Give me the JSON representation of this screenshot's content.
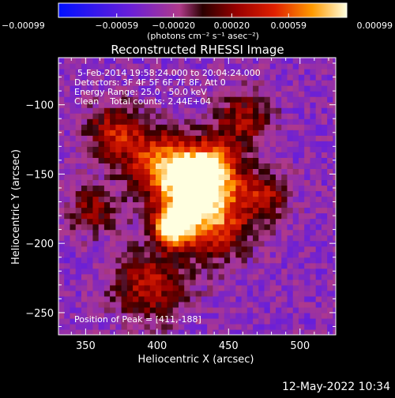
{
  "chart_data": {
    "type": "heatmap",
    "title": "Reconstructed RHESSI Image",
    "xlabel": "Heliocentric X (arcsec)",
    "ylabel": "Heliocentric Y (arcsec)",
    "xlim": [
      331,
      525
    ],
    "ylim": [
      -266,
      -66
    ],
    "x_ticks": [
      350,
      400,
      450,
      500
    ],
    "y_ticks": [
      -100,
      -150,
      -200,
      -250
    ],
    "colorbar": {
      "min": -0.00099,
      "max": 0.00099,
      "tick_values": [
        -0.00099,
        -0.00059,
        -0.0002,
        0.0002,
        0.00059,
        0.00099
      ],
      "tick_labels": [
        "-0.00099",
        "-0.00059",
        "-0.00020",
        "0.00020",
        "0.00059",
        "0.00099"
      ],
      "unit_label": "(photons cm⁻² s⁻¹ asec⁻²)"
    },
    "annotations": [
      "5-Feb-2014 19:58:24.000 to 20:04:24.000",
      "Detectors: 3F 4F 5F 6F 7F 8F, Att 0",
      "Energy Range: 25.0 - 50.0 keV",
      "Clean    Total counts: 2.44E+04",
      "Position of Peak = [411,-188]"
    ],
    "peak_position": [
      411,
      -188
    ],
    "sources": [
      {
        "x": 411,
        "y": -188,
        "amplitude": 1.0,
        "sigma": 9
      },
      {
        "x": 423,
        "y": -160,
        "amplitude": 0.85,
        "sigma": 18
      },
      {
        "x": 438,
        "y": -145,
        "amplitude": 0.6,
        "sigma": 14
      },
      {
        "x": 400,
        "y": -140,
        "amplitude": 0.45,
        "sigma": 16
      },
      {
        "x": 440,
        "y": -185,
        "amplitude": 0.5,
        "sigma": 18
      },
      {
        "x": 370,
        "y": -120,
        "amplitude": 0.35,
        "sigma": 14
      },
      {
        "x": 395,
        "y": -230,
        "amplitude": 0.35,
        "sigma": 18
      },
      {
        "x": 460,
        "y": -110,
        "amplitude": 0.25,
        "sigma": 14
      },
      {
        "x": 475,
        "y": -165,
        "amplitude": 0.3,
        "sigma": 12
      },
      {
        "x": 355,
        "y": -175,
        "amplitude": 0.2,
        "sigma": 12
      }
    ],
    "background_level": -0.35
  },
  "footer": {
    "timestamp": "12-May-2022 10:34"
  }
}
